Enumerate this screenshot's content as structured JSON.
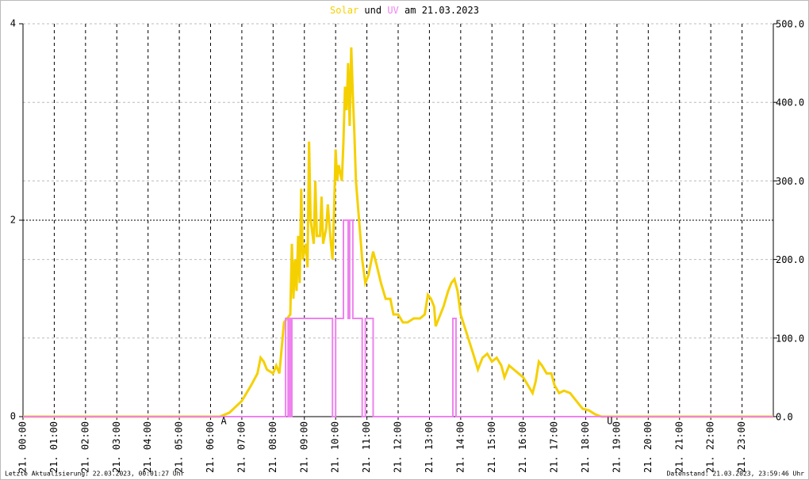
{
  "chart_data": {
    "type": "line",
    "title_parts": [
      "und",
      "am 21.03.2023"
    ],
    "footer_left": "Letzte Aktualisierung: 22.03.2023, 00:01:27 Uhr",
    "footer_right": "Datenstand: 21.03.2023, 23:59:46 Uhr",
    "annotations": [
      {
        "text": "A",
        "x": 6.42
      },
      {
        "text": "U",
        "x": 18.77
      }
    ],
    "xlim": [
      0,
      24
    ],
    "xticks": [
      {
        "value": 0,
        "label": "21. 00:00"
      },
      {
        "value": 1,
        "label": "21. 01:00"
      },
      {
        "value": 2,
        "label": "21. 02:00"
      },
      {
        "value": 3,
        "label": "21. 03:00"
      },
      {
        "value": 4,
        "label": "21. 04:00"
      },
      {
        "value": 5,
        "label": "21. 05:00"
      },
      {
        "value": 6,
        "label": "21. 06:00"
      },
      {
        "value": 7,
        "label": "21. 07:00"
      },
      {
        "value": 8,
        "label": "21. 08:00"
      },
      {
        "value": 9,
        "label": "21. 09:00"
      },
      {
        "value": 10,
        "label": "21. 10:00"
      },
      {
        "value": 11,
        "label": "21. 11:00"
      },
      {
        "value": 12,
        "label": "21. 12:00"
      },
      {
        "value": 13,
        "label": "21. 13:00"
      },
      {
        "value": 14,
        "label": "21. 14:00"
      },
      {
        "value": 15,
        "label": "21. 15:00"
      },
      {
        "value": 16,
        "label": "21. 16:00"
      },
      {
        "value": 17,
        "label": "21. 17:00"
      },
      {
        "value": 18,
        "label": "21. 18:00"
      },
      {
        "value": 19,
        "label": "21. 19:00"
      },
      {
        "value": 20,
        "label": "21. 20:00"
      },
      {
        "value": 21,
        "label": "21. 21:00"
      },
      {
        "value": 22,
        "label": "21. 22:00"
      },
      {
        "value": 23,
        "label": "21. 23:00"
      }
    ],
    "ylim": [
      0,
      4
    ],
    "yticks": [
      0,
      2,
      4
    ],
    "y2lim": [
      0,
      500
    ],
    "y2ticks": [
      {
        "value": 0,
        "label": "0.0"
      },
      {
        "value": 100,
        "label": "100.0"
      },
      {
        "value": 200,
        "label": "200.0"
      },
      {
        "value": 300,
        "label": "300.0"
      },
      {
        "value": 400,
        "label": "400.0"
      },
      {
        "value": 500,
        "label": "500.0"
      }
    ],
    "grid": true,
    "series": [
      {
        "name": "Solar",
        "color": "#f5d000",
        "axis": "y2",
        "x": [
          0,
          6.3,
          6.6,
          7.0,
          7.3,
          7.5,
          7.6,
          7.7,
          7.8,
          8.0,
          8.1,
          8.2,
          8.35,
          8.45,
          8.55,
          8.6,
          8.65,
          8.7,
          8.75,
          8.8,
          8.85,
          8.9,
          8.95,
          9.0,
          9.05,
          9.1,
          9.15,
          9.2,
          9.3,
          9.35,
          9.4,
          9.5,
          9.55,
          9.6,
          9.7,
          9.75,
          9.85,
          9.9,
          9.95,
          10.0,
          10.05,
          10.1,
          10.2,
          10.25,
          10.3,
          10.35,
          10.4,
          10.45,
          10.5,
          10.55,
          10.6,
          10.65,
          10.75,
          10.85,
          10.95,
          11.05,
          11.2,
          11.3,
          11.45,
          11.6,
          11.75,
          11.85,
          12.0,
          12.15,
          12.3,
          12.5,
          12.7,
          12.85,
          12.95,
          13.05,
          13.15,
          13.2,
          13.3,
          13.45,
          13.6,
          13.7,
          13.8,
          13.9,
          14.0,
          14.2,
          14.4,
          14.55,
          14.7,
          14.85,
          15.0,
          15.15,
          15.3,
          15.4,
          15.55,
          15.7,
          15.85,
          16.0,
          16.15,
          16.3,
          16.4,
          16.5,
          16.6,
          16.75,
          16.9,
          17.0,
          17.15,
          17.3,
          17.5,
          17.7,
          17.9,
          18.1,
          18.3,
          18.5,
          24
        ],
        "values": [
          0,
          0,
          5,
          20,
          40,
          55,
          75,
          70,
          60,
          55,
          65,
          55,
          120,
          125,
          130,
          220,
          150,
          200,
          160,
          230,
          170,
          290,
          200,
          210,
          220,
          190,
          350,
          250,
          220,
          300,
          230,
          230,
          280,
          220,
          240,
          270,
          220,
          200,
          260,
          340,
          300,
          320,
          300,
          350,
          420,
          390,
          450,
          370,
          470,
          410,
          360,
          300,
          250,
          200,
          170,
          180,
          210,
          195,
          170,
          150,
          150,
          130,
          130,
          120,
          120,
          125,
          125,
          130,
          155,
          150,
          140,
          115,
          125,
          140,
          160,
          170,
          175,
          160,
          130,
          105,
          80,
          60,
          75,
          80,
          70,
          75,
          65,
          50,
          65,
          60,
          55,
          50,
          40,
          30,
          45,
          70,
          65,
          55,
          55,
          40,
          30,
          33,
          30,
          20,
          10,
          8,
          3,
          0,
          0
        ]
      },
      {
        "name": "UV",
        "color": "#ee82ee",
        "x": [
          0,
          8.4,
          8.4,
          8.48,
          8.48,
          8.52,
          8.52,
          8.56,
          8.56,
          8.6,
          8.6,
          9.9,
          9.9,
          10.0,
          10.0,
          10.25,
          10.25,
          10.4,
          10.4,
          10.45,
          10.45,
          10.55,
          10.55,
          10.85,
          10.85,
          10.95,
          10.95,
          11.2,
          11.2,
          13.75,
          13.75,
          13.85,
          13.85,
          24
        ],
        "values": [
          0,
          0,
          1,
          1,
          0,
          0,
          1,
          1,
          0,
          0,
          1,
          1,
          0,
          0,
          1,
          1,
          2,
          2,
          1,
          1,
          2,
          2,
          1,
          1,
          0,
          0,
          1,
          1,
          0,
          0,
          1,
          1,
          0,
          0
        ]
      }
    ]
  }
}
